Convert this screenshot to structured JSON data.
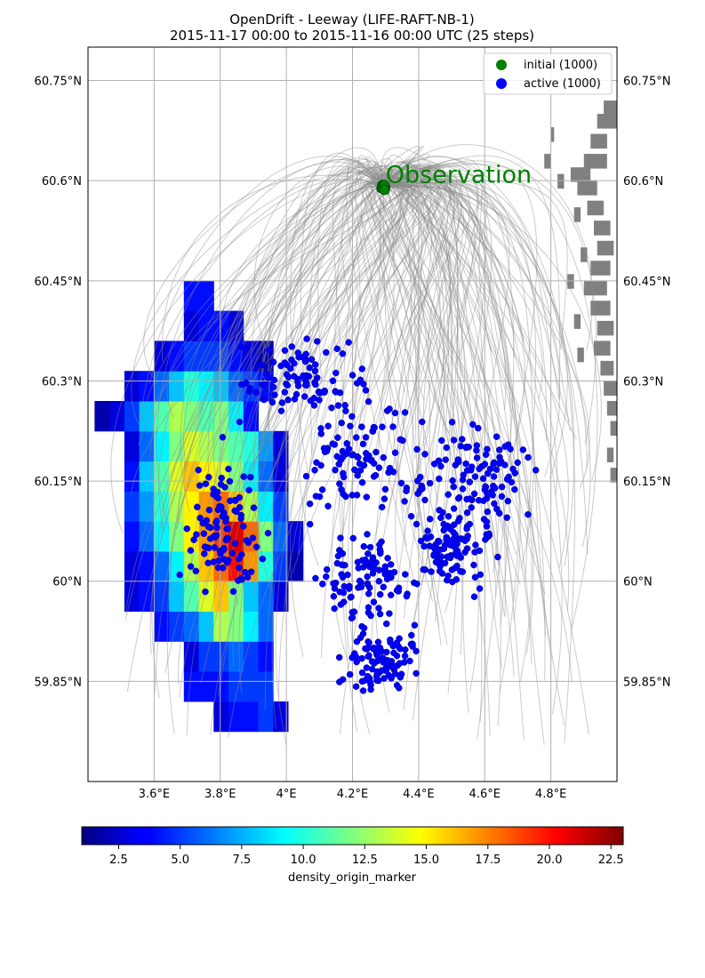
{
  "chart_data": {
    "type": "map",
    "title_line1": "OpenDrift - Leeway (LIFE-RAFT-NB-1)",
    "title_line2": "2015-11-17 00:00 to 2015-11-16 00:00 UTC (25 steps)",
    "lon_range": [
      3.4,
      5.0
    ],
    "lat_range": [
      59.7,
      60.8
    ],
    "lon_ticks": [
      3.6,
      3.8,
      4.0,
      4.2,
      4.4,
      4.6,
      4.8
    ],
    "lon_tick_labels": [
      "3.6°E",
      "3.8°E",
      "4°E",
      "4.2°E",
      "4.4°E",
      "4.6°E",
      "4.8°E"
    ],
    "lat_ticks": [
      59.85,
      60.0,
      60.15,
      60.3,
      60.45,
      60.6,
      60.75
    ],
    "lat_tick_labels": [
      "59.85°N",
      "60°N",
      "60.15°N",
      "60.3°N",
      "60.45°N",
      "60.6°N",
      "60.75°N"
    ],
    "grid": true,
    "legend": {
      "placement": "top-right",
      "items": [
        {
          "label": "initial (1000)",
          "color": "#008000"
        },
        {
          "label": "active (1000)",
          "color": "#0000ff"
        }
      ]
    },
    "annotation": {
      "text": "Observation",
      "lon": 4.3,
      "lat": 60.61,
      "color": "#008000"
    },
    "origin": {
      "lon": 4.29,
      "lat": 60.59
    },
    "colorbar": {
      "label": "density_origin_marker",
      "min": 1,
      "max": 23,
      "ticks": [
        2.5,
        5.0,
        7.5,
        10.0,
        12.5,
        15.0,
        17.5,
        20.0,
        22.5
      ],
      "tick_labels": [
        "2.5",
        "5.0",
        "7.5",
        "10.0",
        "12.5",
        "15.0",
        "17.5",
        "20.0",
        "22.5"
      ],
      "colormap": "jet"
    },
    "density_grid": {
      "lon0": 3.42,
      "lat0": 59.73,
      "dlon": 0.09,
      "dlat": 0.045,
      "rows": [
        "......................",
        "........3.4.4.5.3.....",
        "......4.4.4.5.5.5.....",
        "......3.5.5.6.5.4.....",
        "....4.5.6.8.13.12.9.6....",
        "..3.4.5.8.11.14.16.12.8.6.3.",
        "..3.4.6.9.13.16.18.20.17.10.5.2",
        "..4.6.9.12.15.17.19.21.18.12.6.3",
        "..5.7.10.13.15.17.18.16.13.9.5.",
        "..4.8.11.14.16.15.14.12.9.6.3.",
        "..3.6.9.12.14.13.12.11.10.7.3.",
        "2.3.5.8.11.13.12.11.12.9.4..",
        "..3.4.6.8.10.9.8.6.5.4..",
        "....3.4.5.5.5.4.3.2..",
        "......3.4.4.3...",
        "......4.4......."
      ]
    }
  }
}
